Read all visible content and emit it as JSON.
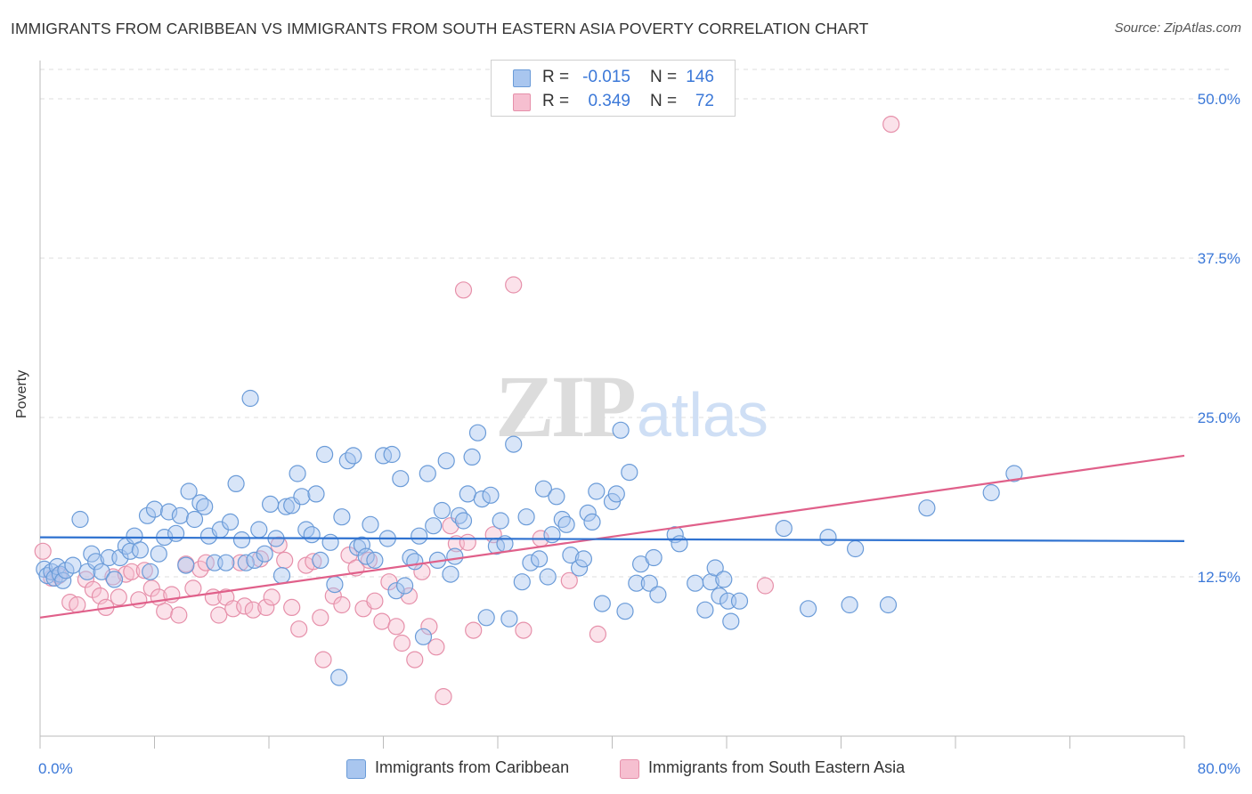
{
  "title": "IMMIGRANTS FROM CARIBBEAN VS IMMIGRANTS FROM SOUTH EASTERN ASIA POVERTY CORRELATION CHART",
  "source": "Source: ZipAtlas.com",
  "watermark": {
    "zip": "ZIP",
    "atlas": "atlas"
  },
  "colors": {
    "blue_fill": "#a9c6ef",
    "blue_stroke": "#6a9bd8",
    "blue_line": "#2f72d0",
    "pink_fill": "#f6bfd0",
    "pink_stroke": "#e690aa",
    "pink_line": "#e0608a",
    "axis_text": "#3b78d8",
    "grid": "#dddddd"
  },
  "legend": {
    "r_label": "R =",
    "n_label": "N =",
    "rows": [
      {
        "r": "-0.015",
        "n": "146",
        "color": "#a9c6ef"
      },
      {
        "r": "0.349",
        "n": "72",
        "color": "#f6bfd0"
      }
    ]
  },
  "chart_data": {
    "type": "scatter",
    "ylabel": "Poverty",
    "xlim": [
      0,
      80
    ],
    "ylim": [
      0,
      53
    ],
    "x_tick_labels": [
      "0.0%",
      "80.0%"
    ],
    "y_ticks": [
      12.5,
      25.0,
      37.5,
      50.0
    ],
    "y_tick_labels": [
      "12.5%",
      "25.0%",
      "37.5%",
      "50.0%"
    ],
    "grid": "horizontal dashed",
    "legend_position": "top-center",
    "series": [
      {
        "name": "Immigrants from Caribbean",
        "color": "#a9c6ef",
        "trend": {
          "x": [
            0,
            80
          ],
          "y": [
            15.6,
            15.3
          ]
        },
        "points": [
          [
            0.3,
            13.1
          ],
          [
            0.5,
            12.6
          ],
          [
            0.8,
            12.9
          ],
          [
            1.0,
            12.4
          ],
          [
            1.2,
            13.3
          ],
          [
            1.4,
            12.7
          ],
          [
            1.6,
            12.2
          ],
          [
            1.8,
            13.0
          ],
          [
            2.3,
            13.4
          ],
          [
            2.8,
            17.0
          ],
          [
            3.3,
            12.9
          ],
          [
            3.6,
            14.3
          ],
          [
            3.9,
            13.7
          ],
          [
            4.3,
            12.9
          ],
          [
            4.8,
            14.0
          ],
          [
            5.2,
            12.3
          ],
          [
            5.6,
            14.0
          ],
          [
            6.0,
            14.9
          ],
          [
            6.3,
            14.5
          ],
          [
            6.6,
            15.7
          ],
          [
            7.0,
            14.6
          ],
          [
            7.5,
            17.3
          ],
          [
            7.7,
            12.9
          ],
          [
            8.0,
            17.8
          ],
          [
            8.3,
            14.3
          ],
          [
            8.7,
            15.6
          ],
          [
            9.0,
            17.6
          ],
          [
            9.5,
            15.9
          ],
          [
            9.8,
            17.3
          ],
          [
            10.2,
            13.4
          ],
          [
            10.4,
            19.2
          ],
          [
            10.8,
            17.0
          ],
          [
            11.2,
            18.3
          ],
          [
            11.5,
            18.0
          ],
          [
            11.8,
            15.7
          ],
          [
            12.2,
            13.6
          ],
          [
            12.6,
            16.2
          ],
          [
            13.0,
            13.6
          ],
          [
            13.3,
            16.8
          ],
          [
            13.7,
            19.8
          ],
          [
            14.1,
            15.4
          ],
          [
            14.4,
            13.6
          ],
          [
            14.7,
            26.5
          ],
          [
            15.0,
            13.8
          ],
          [
            15.3,
            16.2
          ],
          [
            15.7,
            14.3
          ],
          [
            16.1,
            18.2
          ],
          [
            16.5,
            15.5
          ],
          [
            16.9,
            12.6
          ],
          [
            17.2,
            18.0
          ],
          [
            17.6,
            18.1
          ],
          [
            18.0,
            20.6
          ],
          [
            18.3,
            18.8
          ],
          [
            18.6,
            16.2
          ],
          [
            19.0,
            15.8
          ],
          [
            19.3,
            19.0
          ],
          [
            19.6,
            13.8
          ],
          [
            19.9,
            22.1
          ],
          [
            20.3,
            15.2
          ],
          [
            20.6,
            11.9
          ],
          [
            20.9,
            4.6
          ],
          [
            21.1,
            17.2
          ],
          [
            21.5,
            21.6
          ],
          [
            21.9,
            22.0
          ],
          [
            22.2,
            14.8
          ],
          [
            22.5,
            15.0
          ],
          [
            22.8,
            14.1
          ],
          [
            23.1,
            16.6
          ],
          [
            23.4,
            13.8
          ],
          [
            24.0,
            22.0
          ],
          [
            24.3,
            15.5
          ],
          [
            24.6,
            22.1
          ],
          [
            24.9,
            11.4
          ],
          [
            25.2,
            20.2
          ],
          [
            25.5,
            11.8
          ],
          [
            25.9,
            14.0
          ],
          [
            26.2,
            13.7
          ],
          [
            26.5,
            15.7
          ],
          [
            26.8,
            7.8
          ],
          [
            27.1,
            20.6
          ],
          [
            27.5,
            16.5
          ],
          [
            27.8,
            13.8
          ],
          [
            28.1,
            17.7
          ],
          [
            28.4,
            21.6
          ],
          [
            28.7,
            12.7
          ],
          [
            29.0,
            14.1
          ],
          [
            29.3,
            17.3
          ],
          [
            29.6,
            16.9
          ],
          [
            29.9,
            19.0
          ],
          [
            30.2,
            21.9
          ],
          [
            30.6,
            23.8
          ],
          [
            30.9,
            18.6
          ],
          [
            31.2,
            9.3
          ],
          [
            31.5,
            18.9
          ],
          [
            31.9,
            14.9
          ],
          [
            32.2,
            16.9
          ],
          [
            32.5,
            15.1
          ],
          [
            32.8,
            9.2
          ],
          [
            33.1,
            22.9
          ],
          [
            33.7,
            12.1
          ],
          [
            34.0,
            17.2
          ],
          [
            34.3,
            13.6
          ],
          [
            34.9,
            13.9
          ],
          [
            35.2,
            19.4
          ],
          [
            35.5,
            12.5
          ],
          [
            35.8,
            15.8
          ],
          [
            36.1,
            18.8
          ],
          [
            36.5,
            17.0
          ],
          [
            36.8,
            16.6
          ],
          [
            37.1,
            14.2
          ],
          [
            37.7,
            13.2
          ],
          [
            38.0,
            13.9
          ],
          [
            38.3,
            17.5
          ],
          [
            38.6,
            16.8
          ],
          [
            38.9,
            19.2
          ],
          [
            39.3,
            10.4
          ],
          [
            40.0,
            18.4
          ],
          [
            40.3,
            19.0
          ],
          [
            40.6,
            24.0
          ],
          [
            40.9,
            9.8
          ],
          [
            41.2,
            20.7
          ],
          [
            41.7,
            12.0
          ],
          [
            42.0,
            13.5
          ],
          [
            42.6,
            12.0
          ],
          [
            42.9,
            14.0
          ],
          [
            43.2,
            11.1
          ],
          [
            44.4,
            15.8
          ],
          [
            44.7,
            15.1
          ],
          [
            45.8,
            12.0
          ],
          [
            46.5,
            9.9
          ],
          [
            46.9,
            12.1
          ],
          [
            47.2,
            13.2
          ],
          [
            47.5,
            11.0
          ],
          [
            47.8,
            12.3
          ],
          [
            48.1,
            10.6
          ],
          [
            48.3,
            9.0
          ],
          [
            48.9,
            10.6
          ],
          [
            52.0,
            16.3
          ],
          [
            53.7,
            10.0
          ],
          [
            55.1,
            15.6
          ],
          [
            56.6,
            10.3
          ],
          [
            57.0,
            14.7
          ],
          [
            59.3,
            10.3
          ],
          [
            62.0,
            17.9
          ],
          [
            66.5,
            19.1
          ],
          [
            68.1,
            20.6
          ]
        ]
      },
      {
        "name": "Immigrants from South Eastern Asia",
        "color": "#f6bfd0",
        "trend": {
          "x": [
            0,
            80
          ],
          "y": [
            9.3,
            22.0
          ]
        },
        "points": [
          [
            0.2,
            14.5
          ],
          [
            0.8,
            12.4
          ],
          [
            1.3,
            12.6
          ],
          [
            2.1,
            10.5
          ],
          [
            2.6,
            10.3
          ],
          [
            3.2,
            12.3
          ],
          [
            3.7,
            11.5
          ],
          [
            4.2,
            11.0
          ],
          [
            4.6,
            10.1
          ],
          [
            5.1,
            12.5
          ],
          [
            5.5,
            10.9
          ],
          [
            6.0,
            12.7
          ],
          [
            6.4,
            12.9
          ],
          [
            6.9,
            10.7
          ],
          [
            7.3,
            13.0
          ],
          [
            7.8,
            11.6
          ],
          [
            8.3,
            10.9
          ],
          [
            8.7,
            9.8
          ],
          [
            9.2,
            11.1
          ],
          [
            9.7,
            9.5
          ],
          [
            10.2,
            13.5
          ],
          [
            10.7,
            11.6
          ],
          [
            11.2,
            13.1
          ],
          [
            11.6,
            13.6
          ],
          [
            12.1,
            10.9
          ],
          [
            12.5,
            9.5
          ],
          [
            13.0,
            10.9
          ],
          [
            13.5,
            10.0
          ],
          [
            14.0,
            13.6
          ],
          [
            14.3,
            10.2
          ],
          [
            14.9,
            9.9
          ],
          [
            15.4,
            13.9
          ],
          [
            15.8,
            10.1
          ],
          [
            16.2,
            10.9
          ],
          [
            16.7,
            15.0
          ],
          [
            17.1,
            13.8
          ],
          [
            17.6,
            10.1
          ],
          [
            18.1,
            8.4
          ],
          [
            18.6,
            13.4
          ],
          [
            19.1,
            13.7
          ],
          [
            19.6,
            9.3
          ],
          [
            19.8,
            6.0
          ],
          [
            20.5,
            11.0
          ],
          [
            21.1,
            10.3
          ],
          [
            21.6,
            14.2
          ],
          [
            22.1,
            13.2
          ],
          [
            22.6,
            10.0
          ],
          [
            23.0,
            13.8
          ],
          [
            23.4,
            10.6
          ],
          [
            23.9,
            9.0
          ],
          [
            24.4,
            12.1
          ],
          [
            24.9,
            8.6
          ],
          [
            25.3,
            7.3
          ],
          [
            25.8,
            11.0
          ],
          [
            26.2,
            6.0
          ],
          [
            26.7,
            12.9
          ],
          [
            27.2,
            8.6
          ],
          [
            27.7,
            7.0
          ],
          [
            28.2,
            3.1
          ],
          [
            28.7,
            16.5
          ],
          [
            29.1,
            15.1
          ],
          [
            29.6,
            35.0
          ],
          [
            29.9,
            15.2
          ],
          [
            30.3,
            8.3
          ],
          [
            31.7,
            15.8
          ],
          [
            33.1,
            35.4
          ],
          [
            33.8,
            8.3
          ],
          [
            35.0,
            15.5
          ],
          [
            37.0,
            12.2
          ],
          [
            39.0,
            8.0
          ],
          [
            50.7,
            11.8
          ],
          [
            59.5,
            48.0
          ]
        ]
      }
    ]
  }
}
